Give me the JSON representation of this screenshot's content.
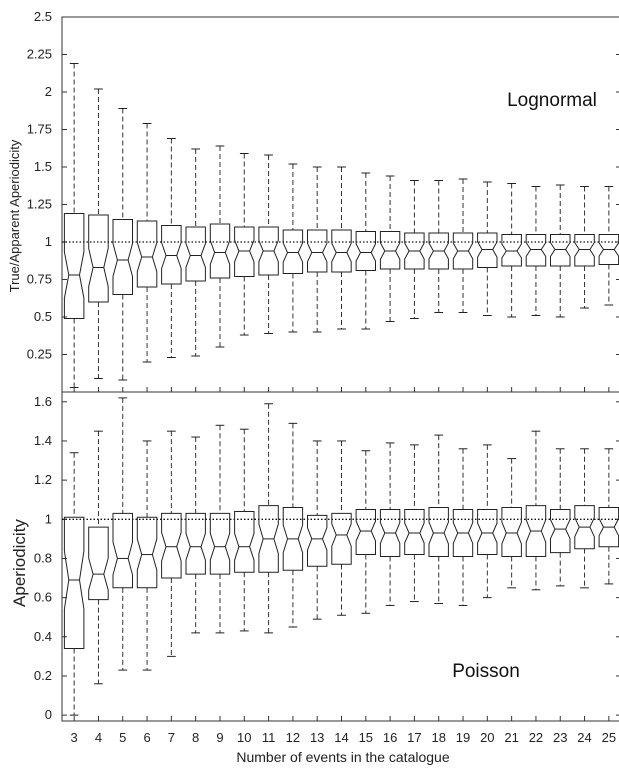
{
  "chart_data": [
    {
      "type": "box",
      "panel_label": "Lognormal",
      "xlabel": "",
      "ylabel": "True/Apparent Aperiodicity",
      "ylim": [
        0,
        2.5
      ],
      "yticks": [
        0.25,
        0.5,
        0.75,
        1,
        1.25,
        1.5,
        1.75,
        2,
        2.25,
        2.5
      ],
      "ytick_labels": [
        "0.25",
        "0.5",
        "0.75",
        "1",
        "1.25",
        "1.5",
        "1.75",
        "2",
        "2.25",
        "2.5"
      ],
      "reference_line": 1,
      "grid": false,
      "categories": [
        "3",
        "4",
        "5",
        "6",
        "7",
        "8",
        "9",
        "10",
        "11",
        "12",
        "13",
        "14",
        "15",
        "16",
        "17",
        "18",
        "19",
        "20",
        "21",
        "22",
        "23",
        "24",
        "25"
      ],
      "boxes": [
        {
          "min": 0.03,
          "q1": 0.49,
          "median": 0.78,
          "q3": 1.19,
          "max": 2.19
        },
        {
          "min": 0.09,
          "q1": 0.6,
          "median": 0.83,
          "q3": 1.18,
          "max": 2.02
        },
        {
          "min": 0.08,
          "q1": 0.65,
          "median": 0.88,
          "q3": 1.15,
          "max": 1.89
        },
        {
          "min": 0.2,
          "q1": 0.7,
          "median": 0.9,
          "q3": 1.14,
          "max": 1.79
        },
        {
          "min": 0.23,
          "q1": 0.72,
          "median": 0.91,
          "q3": 1.11,
          "max": 1.69
        },
        {
          "min": 0.24,
          "q1": 0.74,
          "median": 0.91,
          "q3": 1.1,
          "max": 1.62
        },
        {
          "min": 0.3,
          "q1": 0.76,
          "median": 0.93,
          "q3": 1.12,
          "max": 1.64
        },
        {
          "min": 0.38,
          "q1": 0.77,
          "median": 0.94,
          "q3": 1.1,
          "max": 1.59
        },
        {
          "min": 0.39,
          "q1": 0.78,
          "median": 0.94,
          "q3": 1.1,
          "max": 1.58
        },
        {
          "min": 0.4,
          "q1": 0.79,
          "median": 0.93,
          "q3": 1.08,
          "max": 1.52
        },
        {
          "min": 0.4,
          "q1": 0.8,
          "median": 0.93,
          "q3": 1.08,
          "max": 1.5
        },
        {
          "min": 0.42,
          "q1": 0.8,
          "median": 0.93,
          "q3": 1.08,
          "max": 1.5
        },
        {
          "min": 0.42,
          "q1": 0.81,
          "median": 0.93,
          "q3": 1.07,
          "max": 1.46
        },
        {
          "min": 0.47,
          "q1": 0.82,
          "median": 0.94,
          "q3": 1.07,
          "max": 1.44
        },
        {
          "min": 0.49,
          "q1": 0.82,
          "median": 0.94,
          "q3": 1.06,
          "max": 1.41
        },
        {
          "min": 0.53,
          "q1": 0.82,
          "median": 0.94,
          "q3": 1.06,
          "max": 1.41
        },
        {
          "min": 0.53,
          "q1": 0.82,
          "median": 0.94,
          "q3": 1.06,
          "max": 1.42
        },
        {
          "min": 0.51,
          "q1": 0.83,
          "median": 0.95,
          "q3": 1.06,
          "max": 1.4
        },
        {
          "min": 0.5,
          "q1": 0.84,
          "median": 0.94,
          "q3": 1.05,
          "max": 1.39
        },
        {
          "min": 0.51,
          "q1": 0.84,
          "median": 0.95,
          "q3": 1.05,
          "max": 1.37
        },
        {
          "min": 0.5,
          "q1": 0.84,
          "median": 0.95,
          "q3": 1.05,
          "max": 1.38
        },
        {
          "min": 0.56,
          "q1": 0.84,
          "median": 0.95,
          "q3": 1.05,
          "max": 1.37
        },
        {
          "min": 0.58,
          "q1": 0.85,
          "median": 0.95,
          "q3": 1.05,
          "max": 1.37
        }
      ]
    },
    {
      "type": "box",
      "panel_label": "Poisson",
      "xlabel": "Number of events in the catalogue",
      "ylabel": "Aperiodicity",
      "ylim": [
        -0.03,
        1.65
      ],
      "yticks": [
        0,
        0.2,
        0.4,
        0.6,
        0.8,
        1,
        1.2,
        1.4,
        1.6
      ],
      "ytick_labels": [
        "0",
        "0.2",
        "0.4",
        "0.6",
        "0.8",
        "1",
        "1.2",
        "1.4",
        "1.6"
      ],
      "reference_line": 1,
      "grid": false,
      "categories": [
        "3",
        "4",
        "5",
        "6",
        "7",
        "8",
        "9",
        "10",
        "11",
        "12",
        "13",
        "14",
        "15",
        "16",
        "17",
        "18",
        "19",
        "20",
        "21",
        "22",
        "23",
        "24",
        "25"
      ],
      "highlighted_tick_labels": [
        "3",
        "6",
        "8",
        "10",
        "13",
        "18",
        "20",
        "23"
      ],
      "boxes": [
        {
          "min": 0.0,
          "q1": 0.34,
          "median": 0.69,
          "q3": 1.01,
          "max": 1.34
        },
        {
          "min": 0.16,
          "q1": 0.59,
          "median": 0.72,
          "q3": 0.96,
          "max": 1.45
        },
        {
          "min": 0.23,
          "q1": 0.65,
          "median": 0.8,
          "q3": 1.03,
          "max": 1.62
        },
        {
          "min": 0.23,
          "q1": 0.65,
          "median": 0.82,
          "q3": 1.01,
          "max": 1.4
        },
        {
          "min": 0.3,
          "q1": 0.7,
          "median": 0.86,
          "q3": 1.03,
          "max": 1.45
        },
        {
          "min": 0.42,
          "q1": 0.72,
          "median": 0.86,
          "q3": 1.03,
          "max": 1.42
        },
        {
          "min": 0.42,
          "q1": 0.72,
          "median": 0.86,
          "q3": 1.03,
          "max": 1.48
        },
        {
          "min": 0.43,
          "q1": 0.73,
          "median": 0.86,
          "q3": 1.04,
          "max": 1.46
        },
        {
          "min": 0.42,
          "q1": 0.73,
          "median": 0.9,
          "q3": 1.07,
          "max": 1.59
        },
        {
          "min": 0.45,
          "q1": 0.74,
          "median": 0.9,
          "q3": 1.06,
          "max": 1.49
        },
        {
          "min": 0.49,
          "q1": 0.76,
          "median": 0.9,
          "q3": 1.02,
          "max": 1.4
        },
        {
          "min": 0.51,
          "q1": 0.77,
          "median": 0.92,
          "q3": 1.03,
          "max": 1.4
        },
        {
          "min": 0.52,
          "q1": 0.82,
          "median": 0.94,
          "q3": 1.05,
          "max": 1.35
        },
        {
          "min": 0.56,
          "q1": 0.81,
          "median": 0.93,
          "q3": 1.05,
          "max": 1.39
        },
        {
          "min": 0.58,
          "q1": 0.82,
          "median": 0.93,
          "q3": 1.05,
          "max": 1.38
        },
        {
          "min": 0.57,
          "q1": 0.81,
          "median": 0.93,
          "q3": 1.06,
          "max": 1.43
        },
        {
          "min": 0.56,
          "q1": 0.81,
          "median": 0.93,
          "q3": 1.05,
          "max": 1.36
        },
        {
          "min": 0.6,
          "q1": 0.82,
          "median": 0.93,
          "q3": 1.05,
          "max": 1.38
        },
        {
          "min": 0.65,
          "q1": 0.81,
          "median": 0.93,
          "q3": 1.06,
          "max": 1.31
        },
        {
          "min": 0.64,
          "q1": 0.81,
          "median": 0.94,
          "q3": 1.07,
          "max": 1.45
        },
        {
          "min": 0.66,
          "q1": 0.83,
          "median": 0.95,
          "q3": 1.05,
          "max": 1.36
        },
        {
          "min": 0.65,
          "q1": 0.85,
          "median": 0.96,
          "q3": 1.07,
          "max": 1.36
        },
        {
          "min": 0.67,
          "q1": 0.86,
          "median": 0.96,
          "q3": 1.06,
          "max": 1.36
        }
      ]
    }
  ],
  "colors": {
    "box": "#222222",
    "whisker": "#333333",
    "reference_line": "#111111",
    "axis": "#333333",
    "tick_label": "#222222",
    "highlight_tick_label": "#1f5a1f"
  }
}
